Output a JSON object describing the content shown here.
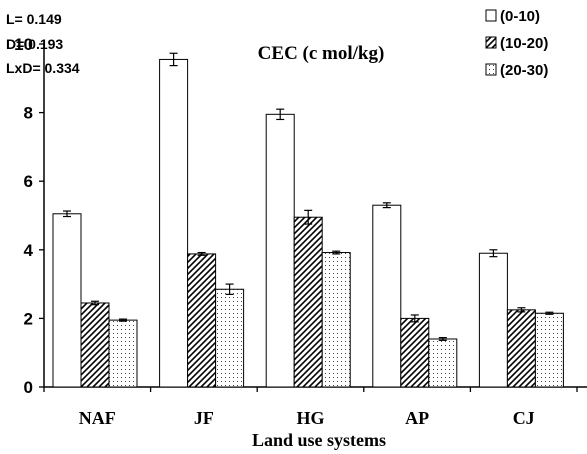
{
  "chart_data": {
    "type": "bar",
    "title": "CEC (c mol/kg)",
    "xlabel": "Land use systems",
    "ylabel": "",
    "ylim": [
      0,
      10
    ],
    "yticks": [
      0,
      2,
      4,
      6,
      8,
      10
    ],
    "grid": false,
    "legend_position": "top-right",
    "categories": [
      "NAF",
      "JF",
      "HG",
      "AP",
      "CJ"
    ],
    "series": [
      {
        "name": "(0-10)",
        "pattern": "white",
        "values": [
          5.05,
          9.55,
          7.95,
          5.3,
          3.9
        ],
        "errors": [
          0.08,
          0.18,
          0.15,
          0.07,
          0.1
        ]
      },
      {
        "name": "(10-20)",
        "pattern": "diagonal-hatch",
        "values": [
          2.45,
          3.88,
          4.95,
          2.0,
          2.25
        ],
        "errors": [
          0.05,
          0.04,
          0.2,
          0.1,
          0.06
        ]
      },
      {
        "name": "(20-30)",
        "pattern": "dots",
        "values": [
          1.95,
          2.85,
          3.92,
          1.4,
          2.15
        ],
        "errors": [
          0.03,
          0.15,
          0.04,
          0.04,
          0.03
        ]
      }
    ],
    "annotations": [
      "L= 0.149",
      "D= 0.193",
      "LxD= 0.334"
    ]
  }
}
